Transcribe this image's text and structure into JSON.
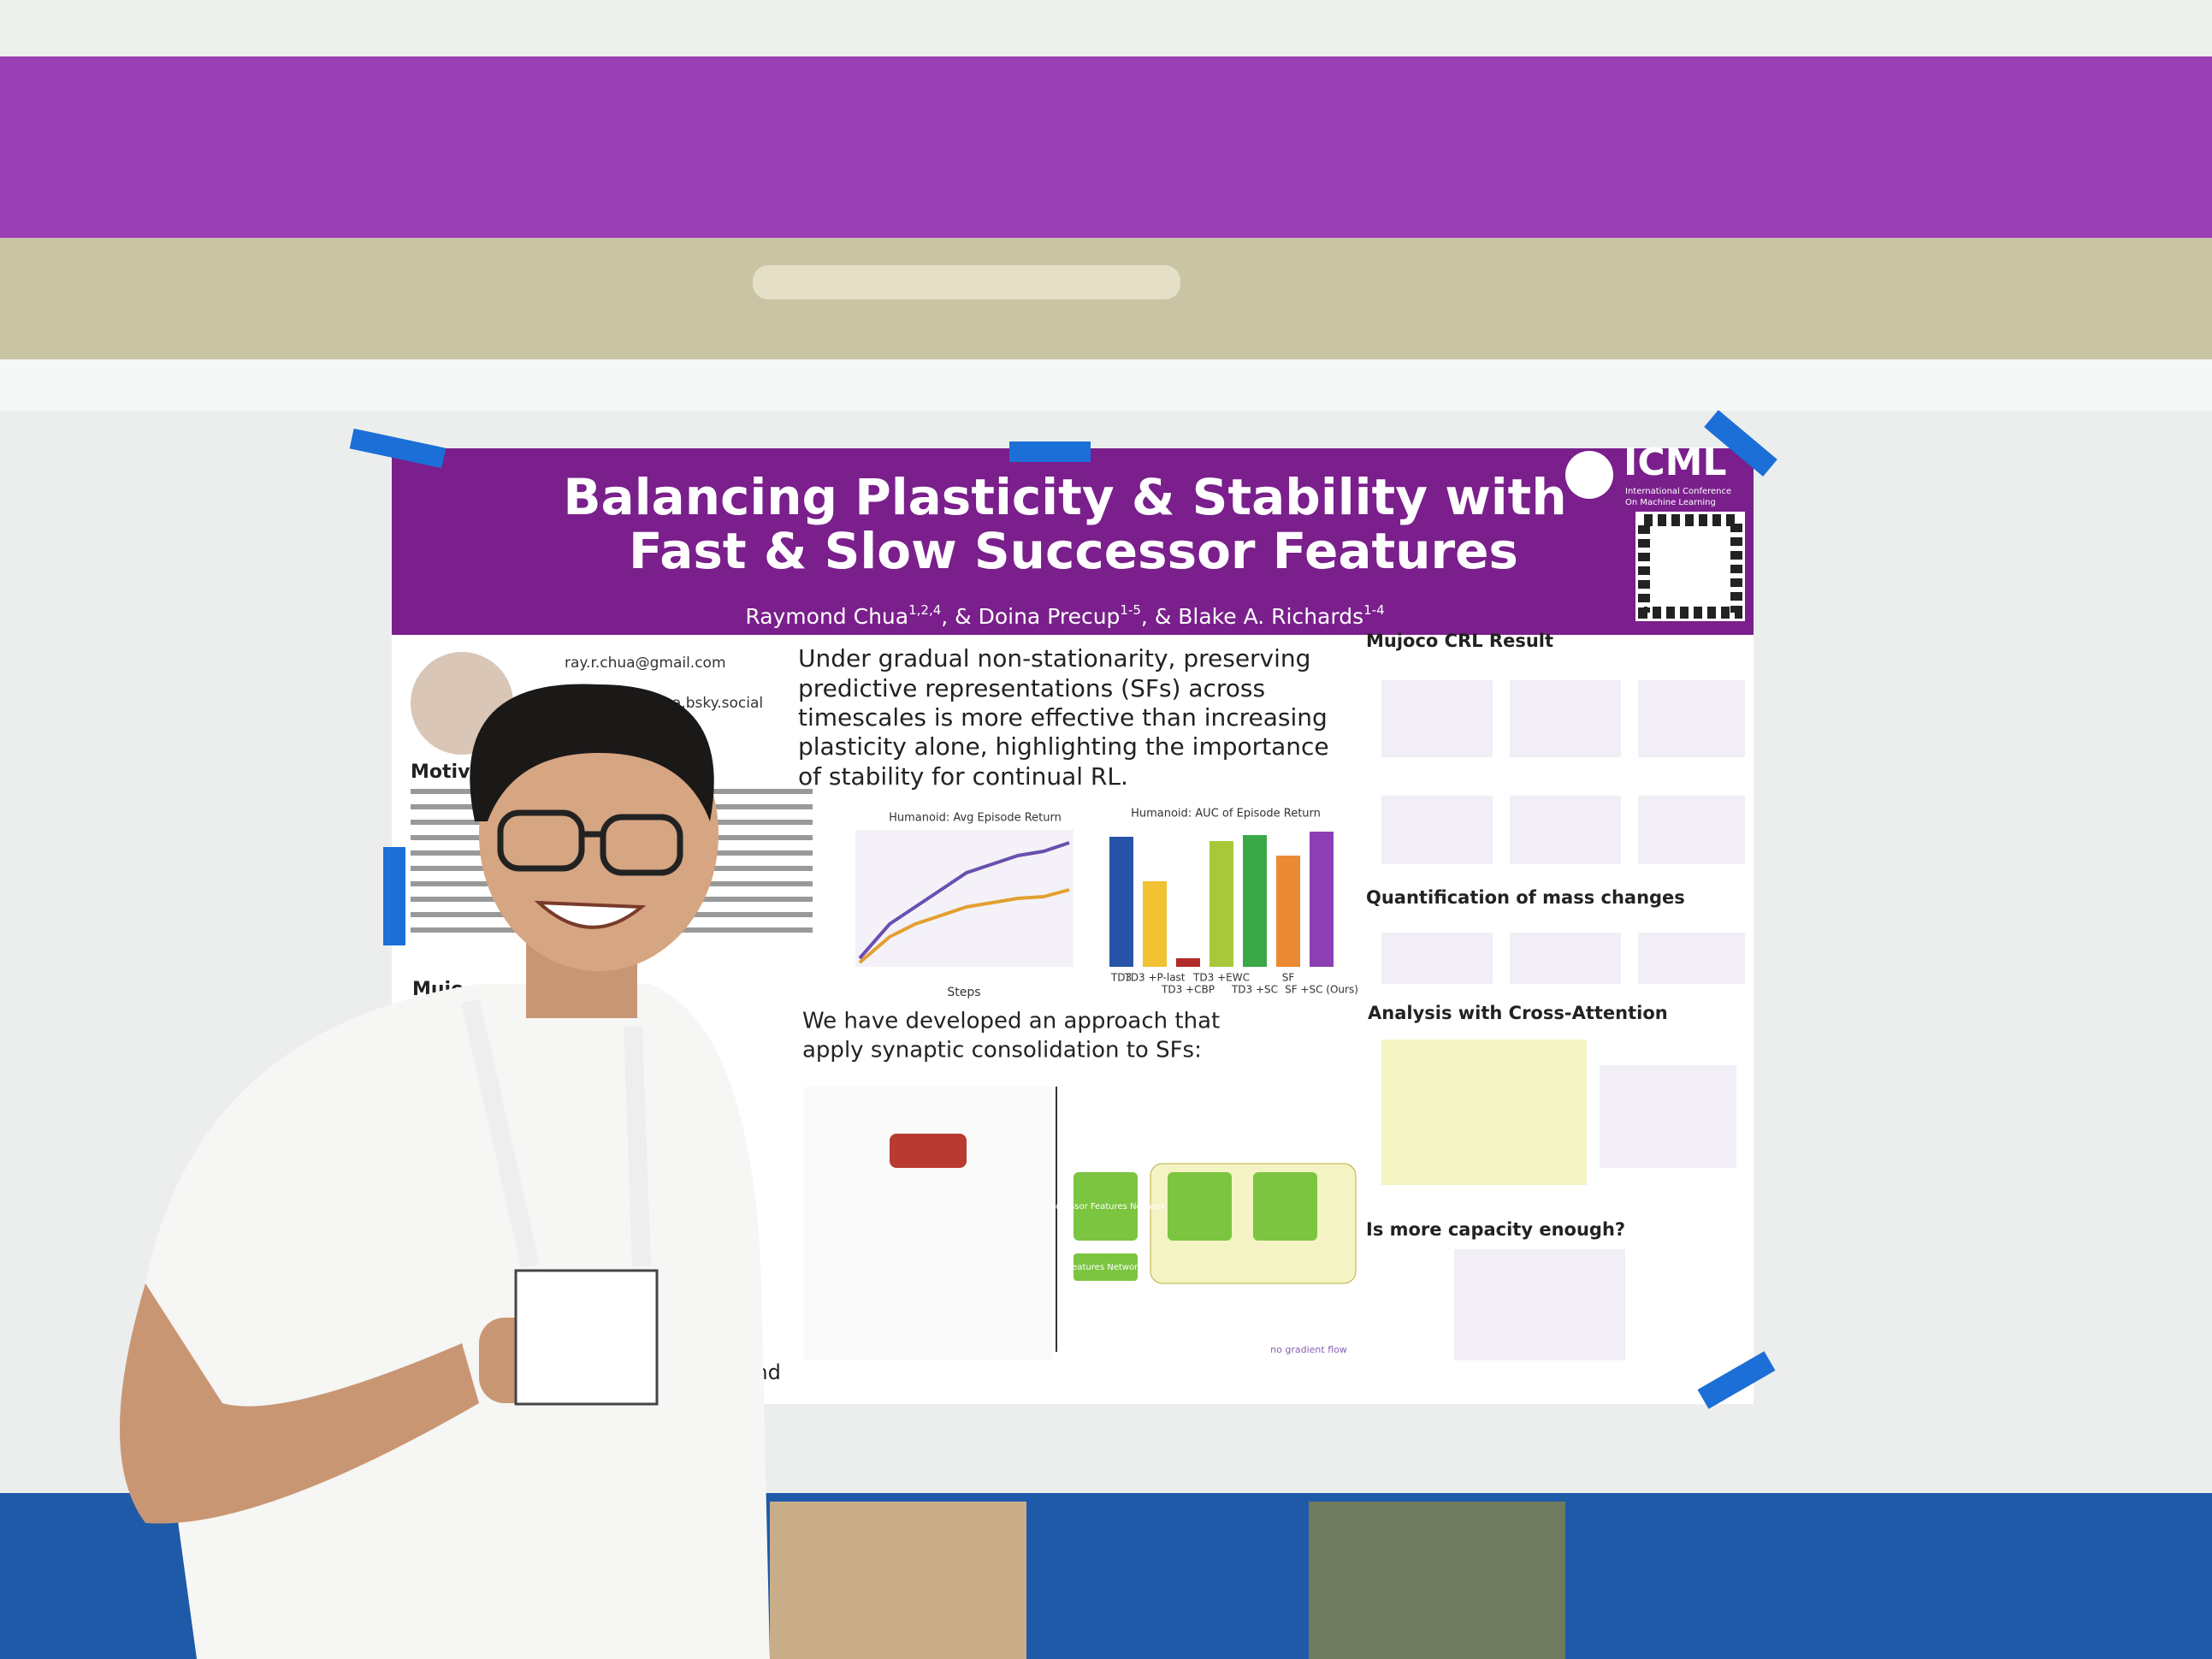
{
  "poster": {
    "title": [
      "Balancing Plasticity & Stability with",
      "Fast & Slow Successor Features"
    ],
    "authors": [
      {
        "name": "Raymond Chua",
        "sup": "1,2,4"
      },
      {
        "name": ", & Doina Precup",
        "sup": "1-5"
      },
      {
        "name": ", & Blake A. Richards",
        "sup": "1-4"
      }
    ],
    "logo": "ICML",
    "logo_subtitle": [
      "International Conference",
      "On Machine Learning"
    ],
    "email": "ray.r.chua@gmail.com",
    "social": "chua.bsky.social",
    "left_headings": [
      "Motiv",
      "Mujo"
    ],
    "key_finding": [
      "Under gradual non-stationarity, preserving",
      "predictive representations (SFs) across",
      "timescales is more effective than increasing",
      "plasticity alone, highlighting the importance",
      "of stability for continual RL."
    ],
    "line_chart_title": "Humanoid: Avg Episode Return",
    "bar_chart_title": "Humanoid: AUC of Episode Return",
    "x_label": "Steps",
    "bar_categories": [
      "TD3",
      "TD3 +P-last",
      "TD3 +CBP",
      "TD3 +EWC",
      "TD3 +SC",
      "SF",
      "SF +SC (Ours)"
    ],
    "approach": [
      "We have developed an approach that",
      "apply synaptic consolidation to SFs:"
    ],
    "sections": [
      "Mujoco CRL Result",
      "Quantification of mass changes",
      "Analysis with Cross-Attention",
      "Is more capacity enough?"
    ],
    "diagram_labels": [
      "Successor Features Network",
      "Features Network",
      "no gradient flow"
    ],
    "sponsor": "Mind"
  }
}
